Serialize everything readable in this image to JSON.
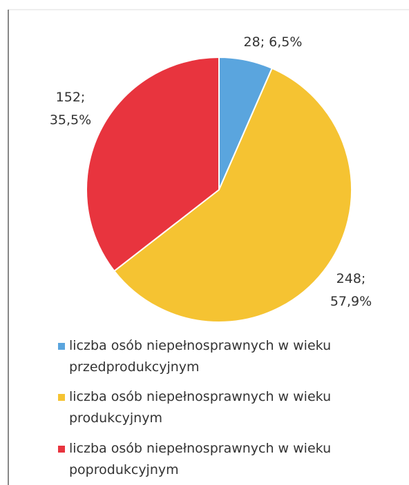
{
  "chart_data": {
    "type": "pie",
    "categories": [
      "liczba osób niepełnosprawnych w wieku przedprodukcyjnym",
      "liczba osób niepełnosprawnych w wieku produkcyjnym",
      "liczba osób niepełnosprawnych w wieku poprodukcyjnym"
    ],
    "values": [
      28,
      248,
      152
    ],
    "value_labels": [
      "28; 6,5%",
      "248; 57,9%",
      "152; 35,5%"
    ],
    "colors": [
      "#5aa5de",
      "#f5c332",
      "#e8343e"
    ]
  }
}
